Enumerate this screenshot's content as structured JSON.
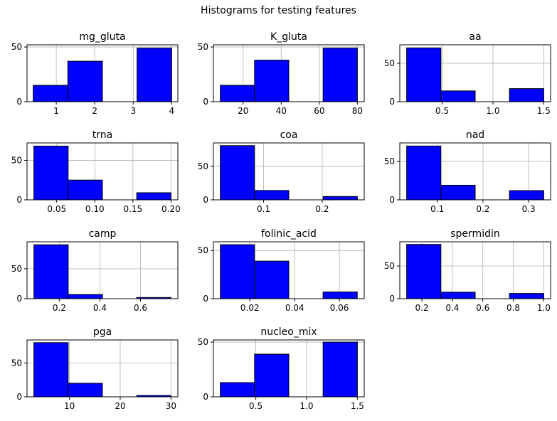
{
  "suptitle": "Histograms for testing features",
  "colors": {
    "bar_fill": "#0000ff",
    "bar_edge": "#000000",
    "grid": "#b0b0b0",
    "axis": "#000000"
  },
  "chart_data": [
    {
      "type": "bar",
      "title": "mg_gluta",
      "grid": true,
      "bins": [
        [
          0.4,
          1.3
        ],
        [
          1.3,
          2.2
        ],
        [
          2.2,
          3.1
        ],
        [
          3.1,
          4.0
        ]
      ],
      "values": [
        15,
        37,
        0,
        49
      ],
      "xlim": [
        0.24,
        4.16
      ],
      "ylim": [
        0,
        52
      ],
      "xticks": [
        1,
        2,
        3,
        4
      ],
      "xtick_labels": [
        "1",
        "2",
        "3",
        "4"
      ],
      "yticks": [
        0,
        50
      ],
      "ytick_labels": [
        "0",
        "50"
      ]
    },
    {
      "type": "bar",
      "title": "K_gluta",
      "grid": true,
      "bins": [
        [
          8,
          26
        ],
        [
          26,
          44
        ],
        [
          44,
          62
        ],
        [
          62,
          80
        ]
      ],
      "values": [
        15,
        38,
        0,
        49
      ],
      "xlim": [
        4.4,
        83.6
      ],
      "ylim": [
        0,
        52
      ],
      "xticks": [
        20,
        40,
        60,
        80
      ],
      "xtick_labels": [
        "20",
        "40",
        "60",
        "80"
      ],
      "yticks": [
        0,
        50
      ],
      "ytick_labels": [
        "0",
        "50"
      ]
    },
    {
      "type": "bar",
      "title": "aa",
      "grid": true,
      "bins": [
        [
          0.15,
          0.4875
        ],
        [
          0.4875,
          0.825
        ],
        [
          0.825,
          1.1625
        ],
        [
          1.1625,
          1.5
        ]
      ],
      "values": [
        70,
        14,
        0,
        17
      ],
      "xlim": [
        0.0825,
        1.5675
      ],
      "ylim": [
        0,
        74
      ],
      "xticks": [
        0.5,
        1.0,
        1.5
      ],
      "xtick_labels": [
        "0.5",
        "1.0",
        "1.5"
      ],
      "yticks": [
        0,
        50
      ],
      "ytick_labels": [
        "0",
        "50"
      ]
    },
    {
      "type": "bar",
      "title": "trna",
      "grid": true,
      "bins": [
        [
          0.02,
          0.065
        ],
        [
          0.065,
          0.11
        ],
        [
          0.11,
          0.155
        ],
        [
          0.155,
          0.2
        ]
      ],
      "values": [
        68,
        25,
        0,
        9
      ],
      "xlim": [
        0.011,
        0.209
      ],
      "ylim": [
        0,
        72
      ],
      "xticks": [
        0.05,
        0.1,
        0.15,
        0.2
      ],
      "xtick_labels": [
        "0.05",
        "0.10",
        "0.15",
        "0.20"
      ],
      "yticks": [
        0,
        50
      ],
      "ytick_labels": [
        "0",
        "50"
      ]
    },
    {
      "type": "bar",
      "title": "coa",
      "grid": true,
      "bins": [
        [
          0.026,
          0.0845
        ],
        [
          0.0845,
          0.143
        ],
        [
          0.143,
          0.2015
        ],
        [
          0.2015,
          0.26
        ]
      ],
      "values": [
        81,
        14,
        0,
        5
      ],
      "xlim": [
        0.0143,
        0.2717
      ],
      "ylim": [
        0,
        85
      ],
      "xticks": [
        0.1,
        0.2
      ],
      "xtick_labels": [
        "0.1",
        "0.2"
      ],
      "yticks": [
        0,
        50
      ],
      "ytick_labels": [
        "0",
        "50"
      ]
    },
    {
      "type": "bar",
      "title": "nad",
      "grid": true,
      "bins": [
        [
          0.033,
          0.108
        ],
        [
          0.108,
          0.183
        ],
        [
          0.183,
          0.258
        ],
        [
          0.258,
          0.333
        ]
      ],
      "values": [
        70,
        19,
        0,
        12
      ],
      "xlim": [
        0.018,
        0.348
      ],
      "ylim": [
        0,
        74
      ],
      "xticks": [
        0.1,
        0.2,
        0.3
      ],
      "xtick_labels": [
        "0.1",
        "0.2",
        "0.3"
      ],
      "yticks": [
        0,
        50
      ],
      "ytick_labels": [
        "0",
        "50"
      ]
    },
    {
      "type": "bar",
      "title": "camp",
      "grid": true,
      "bins": [
        [
          0.075,
          0.244
        ],
        [
          0.244,
          0.413
        ],
        [
          0.413,
          0.581
        ],
        [
          0.581,
          0.75
        ]
      ],
      "values": [
        90,
        7,
        0,
        2
      ],
      "xlim": [
        0.041,
        0.784
      ],
      "ylim": [
        0,
        95
      ],
      "xticks": [
        0.2,
        0.4,
        0.6
      ],
      "xtick_labels": [
        "0.2",
        "0.4",
        "0.6"
      ],
      "yticks": [
        0,
        50
      ],
      "ytick_labels": [
        "0",
        "50"
      ]
    },
    {
      "type": "bar",
      "title": "folinic_acid",
      "grid": true,
      "bins": [
        [
          0.0068,
          0.0221
        ],
        [
          0.0221,
          0.0374
        ],
        [
          0.0374,
          0.0527
        ],
        [
          0.0527,
          0.068
        ]
      ],
      "values": [
        56,
        39,
        0,
        7
      ],
      "xlim": [
        0.0037,
        0.0711
      ],
      "ylim": [
        0,
        59
      ],
      "xticks": [
        0.02,
        0.04,
        0.06
      ],
      "xtick_labels": [
        "0.02",
        "0.04",
        "0.06"
      ],
      "yticks": [
        0,
        50
      ],
      "ytick_labels": [
        "0",
        "50"
      ]
    },
    {
      "type": "bar",
      "title": "spermidin",
      "grid": true,
      "bins": [
        [
          0.1,
          0.325
        ],
        [
          0.325,
          0.55
        ],
        [
          0.55,
          0.775
        ],
        [
          0.775,
          1.0
        ]
      ],
      "values": [
        83,
        10,
        0,
        8
      ],
      "xlim": [
        0.055,
        1.045
      ],
      "ylim": [
        0,
        87
      ],
      "xticks": [
        0.2,
        0.4,
        0.6,
        0.8,
        1.0
      ],
      "xtick_labels": [
        "0.2",
        "0.4",
        "0.6",
        "0.8",
        "1.0"
      ],
      "yticks": [
        0,
        50
      ],
      "ytick_labels": [
        "0",
        "50"
      ]
    },
    {
      "type": "bar",
      "title": "pga",
      "grid": true,
      "bins": [
        [
          3,
          9.75
        ],
        [
          9.75,
          16.5
        ],
        [
          16.5,
          23.25
        ],
        [
          23.25,
          30
        ]
      ],
      "values": [
        80,
        20,
        0,
        2
      ],
      "xlim": [
        1.65,
        31.35
      ],
      "ylim": [
        0,
        84
      ],
      "xticks": [
        10,
        20,
        30
      ],
      "xtick_labels": [
        "10",
        "20",
        "30"
      ],
      "yticks": [
        0,
        50
      ],
      "ytick_labels": [
        "0",
        "50"
      ]
    },
    {
      "type": "bar",
      "title": "nucleo_mix",
      "grid": true,
      "bins": [
        [
          0.15,
          0.4875
        ],
        [
          0.4875,
          0.825
        ],
        [
          0.825,
          1.1625
        ],
        [
          1.1625,
          1.5
        ]
      ],
      "values": [
        13,
        39,
        0,
        50
      ],
      "xlim": [
        0.0825,
        1.5675
      ],
      "ylim": [
        0,
        52
      ],
      "xticks": [
        0.5,
        1.0,
        1.5
      ],
      "xtick_labels": [
        "0.5",
        "1.0",
        "1.5"
      ],
      "yticks": [
        0,
        50
      ],
      "ytick_labels": [
        "0",
        "50"
      ]
    }
  ]
}
